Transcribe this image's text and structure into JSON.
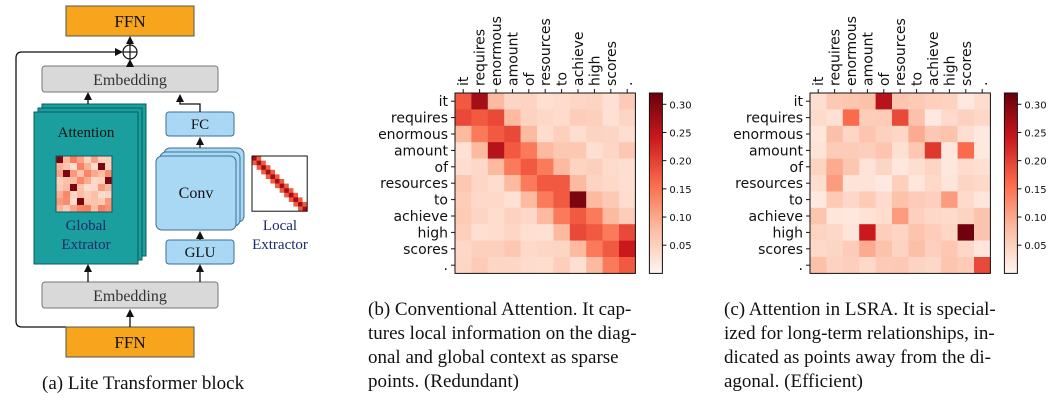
{
  "block": {
    "ffn_top": "FFN",
    "ffn_bottom": "FFN",
    "embedding_top": "Embedding",
    "embedding_bottom": "Embedding",
    "attention": "Attention",
    "global_label_1": "Global",
    "global_label_2": "Extrator",
    "fc": "FC",
    "conv": "Conv",
    "glu": "GLU",
    "local_label_1": "Local",
    "local_label_2": "Extractor"
  },
  "tokens": [
    "it",
    "requires",
    "enormous",
    "amount",
    "of",
    "resources",
    "to",
    "achieve",
    "high",
    "scores",
    "."
  ],
  "colorbar_ticks": [
    "0.30",
    "0.25",
    "0.20",
    "0.15",
    "0.10",
    "0.05"
  ],
  "colors": {
    "orange": "#f7a51c",
    "teal": "#1a9e9e",
    "lightblue": "#a9d8f5",
    "gray": "#d9d9d9",
    "navy": "#1b2a6b",
    "heat_high": "#67000d"
  },
  "captions": {
    "a": "(a) Lite Transformer block",
    "b_lines": [
      "(b) Conventional Attention. It cap-",
      "tures local information on the diag-",
      "onal and global context as sparse",
      "points. (Redundant)"
    ],
    "c_lines": [
      "(c) Attention in LSRA. It is special-",
      "ized for long-term relationships, in-",
      "dicated as points away from the di-",
      "agonal. (Efficient)"
    ]
  }
}
